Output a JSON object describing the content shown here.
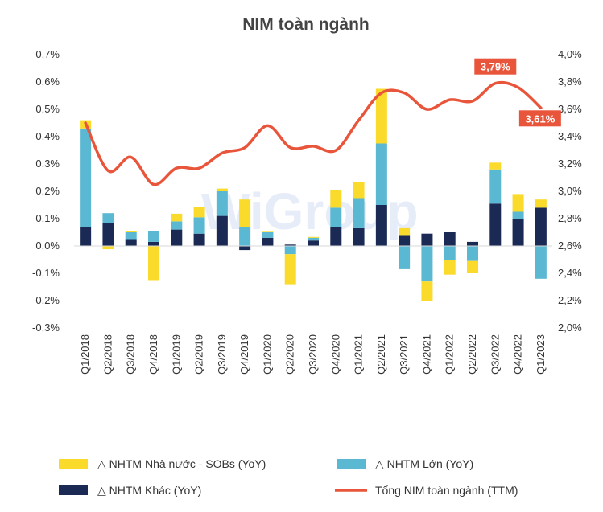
{
  "chart_data": {
    "type": "bar",
    "title": "NIM toàn ngành",
    "categories": [
      "Q1/2018",
      "Q2/2018",
      "Q3/2018",
      "Q4/2018",
      "Q1/2019",
      "Q2/2019",
      "Q3/2019",
      "Q4/2019",
      "Q1/2020",
      "Q2/2020",
      "Q3/2020",
      "Q4/2020",
      "Q1/2021",
      "Q2/2021",
      "Q3/2021",
      "Q4/2021",
      "Q1/2022",
      "Q2/2022",
      "Q3/2022",
      "Q4/2022",
      "Q1/2023"
    ],
    "y_left": {
      "min": -0.3,
      "max": 0.7,
      "step": 0.1,
      "tick_labels": [
        "-0,3%",
        "-0,2%",
        "-0,1%",
        "0,0%",
        "0,1%",
        "0,2%",
        "0,3%",
        "0,4%",
        "0,5%",
        "0,6%",
        "0,7%"
      ]
    },
    "y_right": {
      "min": 2.0,
      "max": 4.0,
      "step": 0.2,
      "tick_labels": [
        "2,0%",
        "2,2%",
        "2,4%",
        "2,6%",
        "2,8%",
        "3,0%",
        "3,2%",
        "3,4%",
        "3,6%",
        "3,8%",
        "4,0%"
      ]
    },
    "series": [
      {
        "name": "NHTM Khác (YoY)",
        "legend_label": "△ NHTM Khác (YoY)",
        "color": "#1b2a55",
        "type": "stacked-bar",
        "values": [
          0.07,
          0.085,
          0.025,
          0.015,
          0.06,
          0.045,
          0.11,
          -0.015,
          0.03,
          0.005,
          0.02,
          0.07,
          0.065,
          0.15,
          0.04,
          0.045,
          0.05,
          0.015,
          0.155,
          0.1,
          0.14
        ]
      },
      {
        "name": "NHTM Lớn (YoY)",
        "legend_label": "△ NHTM Lớn (YoY)",
        "color": "#5ab8d2",
        "type": "stacked-bar",
        "values": [
          0.36,
          0.035,
          0.025,
          0.04,
          0.03,
          0.06,
          0.09,
          0.07,
          0.02,
          -0.03,
          0.01,
          0.07,
          0.11,
          0.225,
          -0.085,
          -0.13,
          -0.05,
          -0.055,
          0.125,
          0.025,
          -0.12
        ]
      },
      {
        "name": "NHTM Nhà nước - SOBs (YoY)",
        "legend_label": "△ NHTM Nhà nước - SOBs (YoY)",
        "color": "#fada2b",
        "type": "stacked-bar",
        "values": [
          0.03,
          -0.012,
          0.005,
          -0.125,
          0.028,
          0.037,
          0.01,
          0.1,
          0.002,
          -0.11,
          0.003,
          0.065,
          0.06,
          0.2,
          0.025,
          -0.07,
          -0.055,
          -0.045,
          0.025,
          0.065,
          0.03
        ]
      },
      {
        "name": "Tổng NIM toàn ngành (TTM)",
        "legend_label": "Tổng NIM toàn ngành (TTM)",
        "color": "#e8553a",
        "type": "line",
        "axis": "right",
        "values": [
          3.5,
          3.15,
          3.25,
          3.05,
          3.17,
          3.17,
          3.28,
          3.32,
          3.48,
          3.32,
          3.33,
          3.3,
          3.52,
          3.72,
          3.72,
          3.6,
          3.67,
          3.66,
          3.79,
          3.76,
          3.61
        ]
      }
    ],
    "callouts": [
      {
        "label": "3,79%",
        "category_index": 18
      },
      {
        "label": "3,61%",
        "category_index": 20
      }
    ],
    "watermark": "WiGroup"
  }
}
